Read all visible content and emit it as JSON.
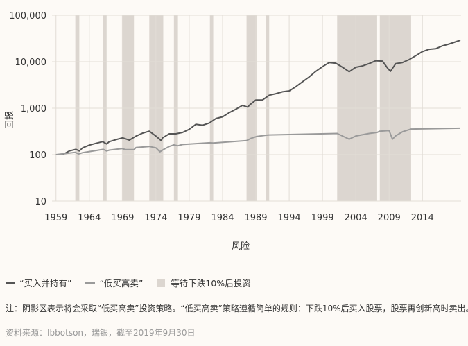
{
  "chart_data": {
    "type": "line",
    "title": "",
    "xlabel": "风险",
    "ylabel": "回报",
    "y_scale": "log",
    "ylim": [
      10,
      100000
    ],
    "xlim": [
      1958.4,
      2019.8
    ],
    "y_ticks": [
      10,
      100,
      1000,
      10000,
      100000
    ],
    "y_tick_labels": [
      "10",
      "100",
      "1,000",
      "10,000",
      "100,000"
    ],
    "x_ticks": [
      1959,
      1964,
      1969,
      1974,
      1979,
      1984,
      1989,
      1994,
      1999,
      2004,
      2009,
      2014
    ],
    "x_tick_labels": [
      "1959",
      "1964",
      "1969",
      "1974",
      "1979",
      "1984",
      "1989",
      "1994",
      "1999",
      "2004",
      "2009",
      "2014"
    ],
    "grid": true,
    "shaded_periods": [
      [
        1961.9,
        1962.5
      ],
      [
        1966.1,
        1966.6
      ],
      [
        1968.9,
        1970.7
      ],
      [
        1973.0,
        1975.1
      ],
      [
        1976.7,
        1977.3
      ],
      [
        1982.1,
        1982.6
      ],
      [
        1987.6,
        1989.1
      ],
      [
        1990.5,
        1991.0
      ],
      [
        2001.2,
        2007.2
      ],
      [
        2007.6,
        2012.3
      ]
    ],
    "series": [
      {
        "name": "“买入并持有”",
        "color": "#555555",
        "points": [
          [
            1959.0,
            100
          ],
          [
            1960.0,
            100
          ],
          [
            1961.0,
            120
          ],
          [
            1962.0,
            130
          ],
          [
            1962.5,
            120
          ],
          [
            1963.0,
            140
          ],
          [
            1964.0,
            160
          ],
          [
            1965.0,
            175
          ],
          [
            1966.0,
            190
          ],
          [
            1966.6,
            170
          ],
          [
            1967.0,
            190
          ],
          [
            1968.0,
            210
          ],
          [
            1969.0,
            230
          ],
          [
            1970.0,
            205
          ],
          [
            1971.0,
            250
          ],
          [
            1972.0,
            290
          ],
          [
            1973.0,
            320
          ],
          [
            1974.0,
            250
          ],
          [
            1974.8,
            200
          ],
          [
            1975.0,
            230
          ],
          [
            1976.0,
            280
          ],
          [
            1977.0,
            280
          ],
          [
            1978.0,
            300
          ],
          [
            1979.0,
            350
          ],
          [
            1980.0,
            450
          ],
          [
            1981.0,
            430
          ],
          [
            1982.0,
            480
          ],
          [
            1983.0,
            600
          ],
          [
            1984.0,
            650
          ],
          [
            1985.0,
            800
          ],
          [
            1986.0,
            950
          ],
          [
            1987.0,
            1150
          ],
          [
            1987.8,
            1050
          ],
          [
            1988.0,
            1150
          ],
          [
            1989.0,
            1500
          ],
          [
            1990.0,
            1500
          ],
          [
            1991.0,
            1900
          ],
          [
            1992.0,
            2050
          ],
          [
            1993.0,
            2250
          ],
          [
            1994.0,
            2350
          ],
          [
            1995.0,
            2900
          ],
          [
            1996.0,
            3700
          ],
          [
            1997.0,
            4700
          ],
          [
            1998.0,
            6200
          ],
          [
            1999.0,
            7800
          ],
          [
            2000.0,
            9600
          ],
          [
            2001.0,
            9300
          ],
          [
            2002.0,
            7600
          ],
          [
            2003.0,
            6100
          ],
          [
            2004.0,
            7600
          ],
          [
            2005.0,
            8100
          ],
          [
            2006.0,
            9100
          ],
          [
            2007.0,
            10500
          ],
          [
            2008.0,
            10300
          ],
          [
            2008.8,
            7200
          ],
          [
            2009.2,
            6200
          ],
          [
            2010.0,
            9100
          ],
          [
            2011.0,
            9600
          ],
          [
            2012.0,
            11100
          ],
          [
            2013.0,
            13500
          ],
          [
            2014.0,
            16500
          ],
          [
            2015.0,
            18500
          ],
          [
            2016.0,
            19000
          ],
          [
            2017.0,
            22000
          ],
          [
            2018.0,
            24000
          ],
          [
            2019.7,
            29000
          ]
        ]
      },
      {
        "name": "“低买高卖”",
        "color": "#9a9a9a",
        "points": [
          [
            1959.0,
            100
          ],
          [
            1961.9,
            112
          ],
          [
            1962.4,
            103
          ],
          [
            1963.0,
            110
          ],
          [
            1966.1,
            130
          ],
          [
            1966.6,
            120
          ],
          [
            1967.0,
            125
          ],
          [
            1968.9,
            135
          ],
          [
            1969.5,
            128
          ],
          [
            1970.7,
            128
          ],
          [
            1971.0,
            142
          ],
          [
            1973.0,
            150
          ],
          [
            1974.0,
            140
          ],
          [
            1974.6,
            115
          ],
          [
            1975.1,
            128
          ],
          [
            1976.0,
            150
          ],
          [
            1976.7,
            162
          ],
          [
            1977.3,
            155
          ],
          [
            1978.0,
            165
          ],
          [
            1982.1,
            180
          ],
          [
            1982.6,
            178
          ],
          [
            1987.6,
            200
          ],
          [
            1988.3,
            225
          ],
          [
            1989.1,
            245
          ],
          [
            1990.5,
            262
          ],
          [
            1991.0,
            265
          ],
          [
            2001.2,
            285
          ],
          [
            2002.3,
            240
          ],
          [
            2003.0,
            215
          ],
          [
            2004.0,
            252
          ],
          [
            2006.0,
            285
          ],
          [
            2007.2,
            300
          ],
          [
            2007.6,
            320
          ],
          [
            2009.0,
            330
          ],
          [
            2009.5,
            215
          ],
          [
            2010.0,
            255
          ],
          [
            2011.0,
            310
          ],
          [
            2012.3,
            355
          ],
          [
            2019.7,
            370
          ]
        ]
      }
    ]
  },
  "legend": {
    "buy_hold": "“买入并持有”",
    "low_high": "“低买高卖”",
    "shaded": "等待下跌10%后投资",
    "buy_hold_color": "#555555",
    "low_high_color": "#9a9a9a",
    "shade_color": "#dcd6d0"
  },
  "note": "注：阴影区表示将会采取“低买高卖”投资策略。“低买高卖”策略遵循简单的规则：下跌10%后买入股票，股票再创新高时卖出。",
  "source": "资料来源：Ibbotson，瑞银，截至2019年9月30日"
}
